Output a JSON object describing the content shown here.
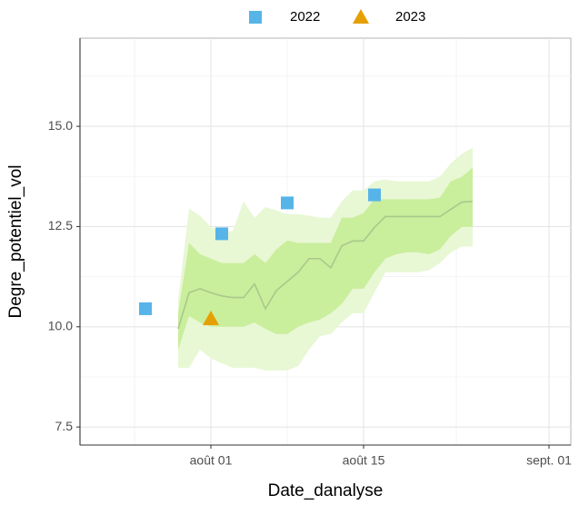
{
  "chart_data": {
    "type": "ribbon-scatter",
    "x_label": "Date_danalyse",
    "y_label": "Degre_potentiel_vol",
    "xlim": [
      "07-20",
      "09-03"
    ],
    "ylim": [
      7.05,
      17.2
    ],
    "xticks": [
      {
        "value": "08-01",
        "label": "août 01"
      },
      {
        "value": "08-15",
        "label": "août 15"
      },
      {
        "value": "09-01",
        "label": "sept. 01"
      }
    ],
    "yticks": [
      {
        "value": 7.5,
        "label": "7.5"
      },
      {
        "value": 10,
        "label": "10.0"
      },
      {
        "value": 12.5,
        "label": "12.5"
      },
      {
        "value": 15,
        "label": "15.0"
      }
    ],
    "grid": true,
    "legend_position": "top",
    "ribbon": {
      "x": [
        "07-29",
        "07-30",
        "07-31",
        "08-01",
        "08-02",
        "08-03",
        "08-04",
        "08-05",
        "08-06",
        "08-07",
        "08-08",
        "08-09",
        "08-10",
        "08-11",
        "08-12",
        "08-13",
        "08-14",
        "08-15",
        "08-16",
        "08-17",
        "08-18",
        "08-19",
        "08-20",
        "08-21",
        "08-22",
        "08-23",
        "08-24",
        "08-25"
      ],
      "line": [
        9.95,
        10.85,
        10.95,
        10.85,
        10.77,
        10.73,
        10.73,
        11.07,
        10.45,
        10.9,
        11.13,
        11.36,
        11.7,
        11.7,
        11.47,
        12.02,
        12.14,
        12.14,
        12.48,
        12.75,
        12.75,
        12.75,
        12.75,
        12.75,
        12.75,
        12.93,
        13.11,
        13.13
      ],
      "inner_low": [
        9.43,
        10.27,
        10.11,
        10.0,
        10.0,
        10.0,
        10.0,
        10.11,
        9.95,
        9.82,
        9.82,
        10.0,
        10.11,
        10.18,
        10.34,
        10.57,
        10.95,
        10.95,
        11.36,
        11.7,
        11.81,
        11.86,
        11.86,
        11.81,
        11.93,
        12.27,
        12.49,
        12.49
      ],
      "inner_high": [
        10.34,
        12.09,
        11.81,
        11.7,
        11.59,
        11.59,
        11.59,
        11.81,
        11.59,
        11.93,
        12.15,
        12.09,
        12.09,
        12.09,
        12.09,
        12.72,
        12.72,
        12.84,
        13.18,
        13.18,
        13.18,
        13.18,
        13.18,
        13.18,
        13.22,
        13.63,
        13.74,
        13.97
      ],
      "outer_low": [
        8.98,
        8.98,
        9.43,
        9.21,
        9.09,
        8.98,
        8.98,
        8.98,
        8.91,
        8.91,
        8.91,
        9.02,
        9.43,
        9.77,
        9.82,
        10.11,
        10.34,
        10.34,
        10.86,
        11.36,
        11.36,
        11.36,
        11.36,
        11.41,
        11.59,
        11.86,
        12.0,
        12.0
      ],
      "outer_high": [
        10.68,
        12.95,
        12.77,
        12.49,
        12.38,
        12.38,
        13.13,
        12.72,
        12.99,
        12.9,
        12.81,
        12.81,
        12.77,
        12.72,
        12.72,
        13.13,
        13.4,
        13.4,
        13.63,
        13.67,
        13.63,
        13.63,
        13.63,
        13.63,
        13.74,
        14.08,
        14.31,
        14.47
      ],
      "line_color": "#a9c98c",
      "inner_color": "#c9ee9c",
      "outer_color": "#e8f7d4"
    },
    "series": [
      {
        "name": "2022",
        "color": "#56b4e9",
        "shape": "square",
        "x": [
          "07-26",
          "08-02",
          "08-08",
          "08-16"
        ],
        "values": [
          10.45,
          12.32,
          13.09,
          13.29
        ]
      },
      {
        "name": "2023",
        "color": "#e69f00",
        "shape": "triangle",
        "x": [
          "08-01"
        ],
        "values": [
          10.2
        ]
      }
    ]
  }
}
